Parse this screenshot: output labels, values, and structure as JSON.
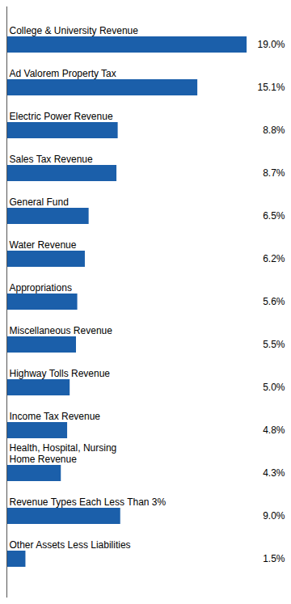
{
  "chart_data": {
    "type": "bar",
    "orientation": "horizontal",
    "categories": [
      "College & University Revenue",
      "Ad Valorem Property Tax",
      "Electric Power Revenue",
      "Sales Tax Revenue",
      "General Fund",
      "Water Revenue",
      "Appropriations",
      "Miscellaneous Revenue",
      "Highway Tolls Revenue",
      "Income Tax Revenue",
      "Health, Hospital, Nursing\nHome Revenue",
      "Revenue Types Each Less Than 3%",
      "Other Assets Less Liabilities"
    ],
    "values": [
      19.0,
      15.1,
      8.8,
      8.7,
      6.5,
      6.2,
      5.6,
      5.5,
      5.0,
      4.8,
      4.3,
      9.0,
      1.5
    ],
    "value_labels": [
      "19.0%",
      "15.1%",
      "8.8%",
      "8.7%",
      "6.5%",
      "6.2%",
      "5.6%",
      "5.5%",
      "5.0%",
      "4.8%",
      "4.3%",
      "9.0%",
      "1.5%"
    ],
    "data_labels": true,
    "color": "#1B5FAA",
    "xlim": [
      0,
      22
    ],
    "tick_labels": "y"
  }
}
